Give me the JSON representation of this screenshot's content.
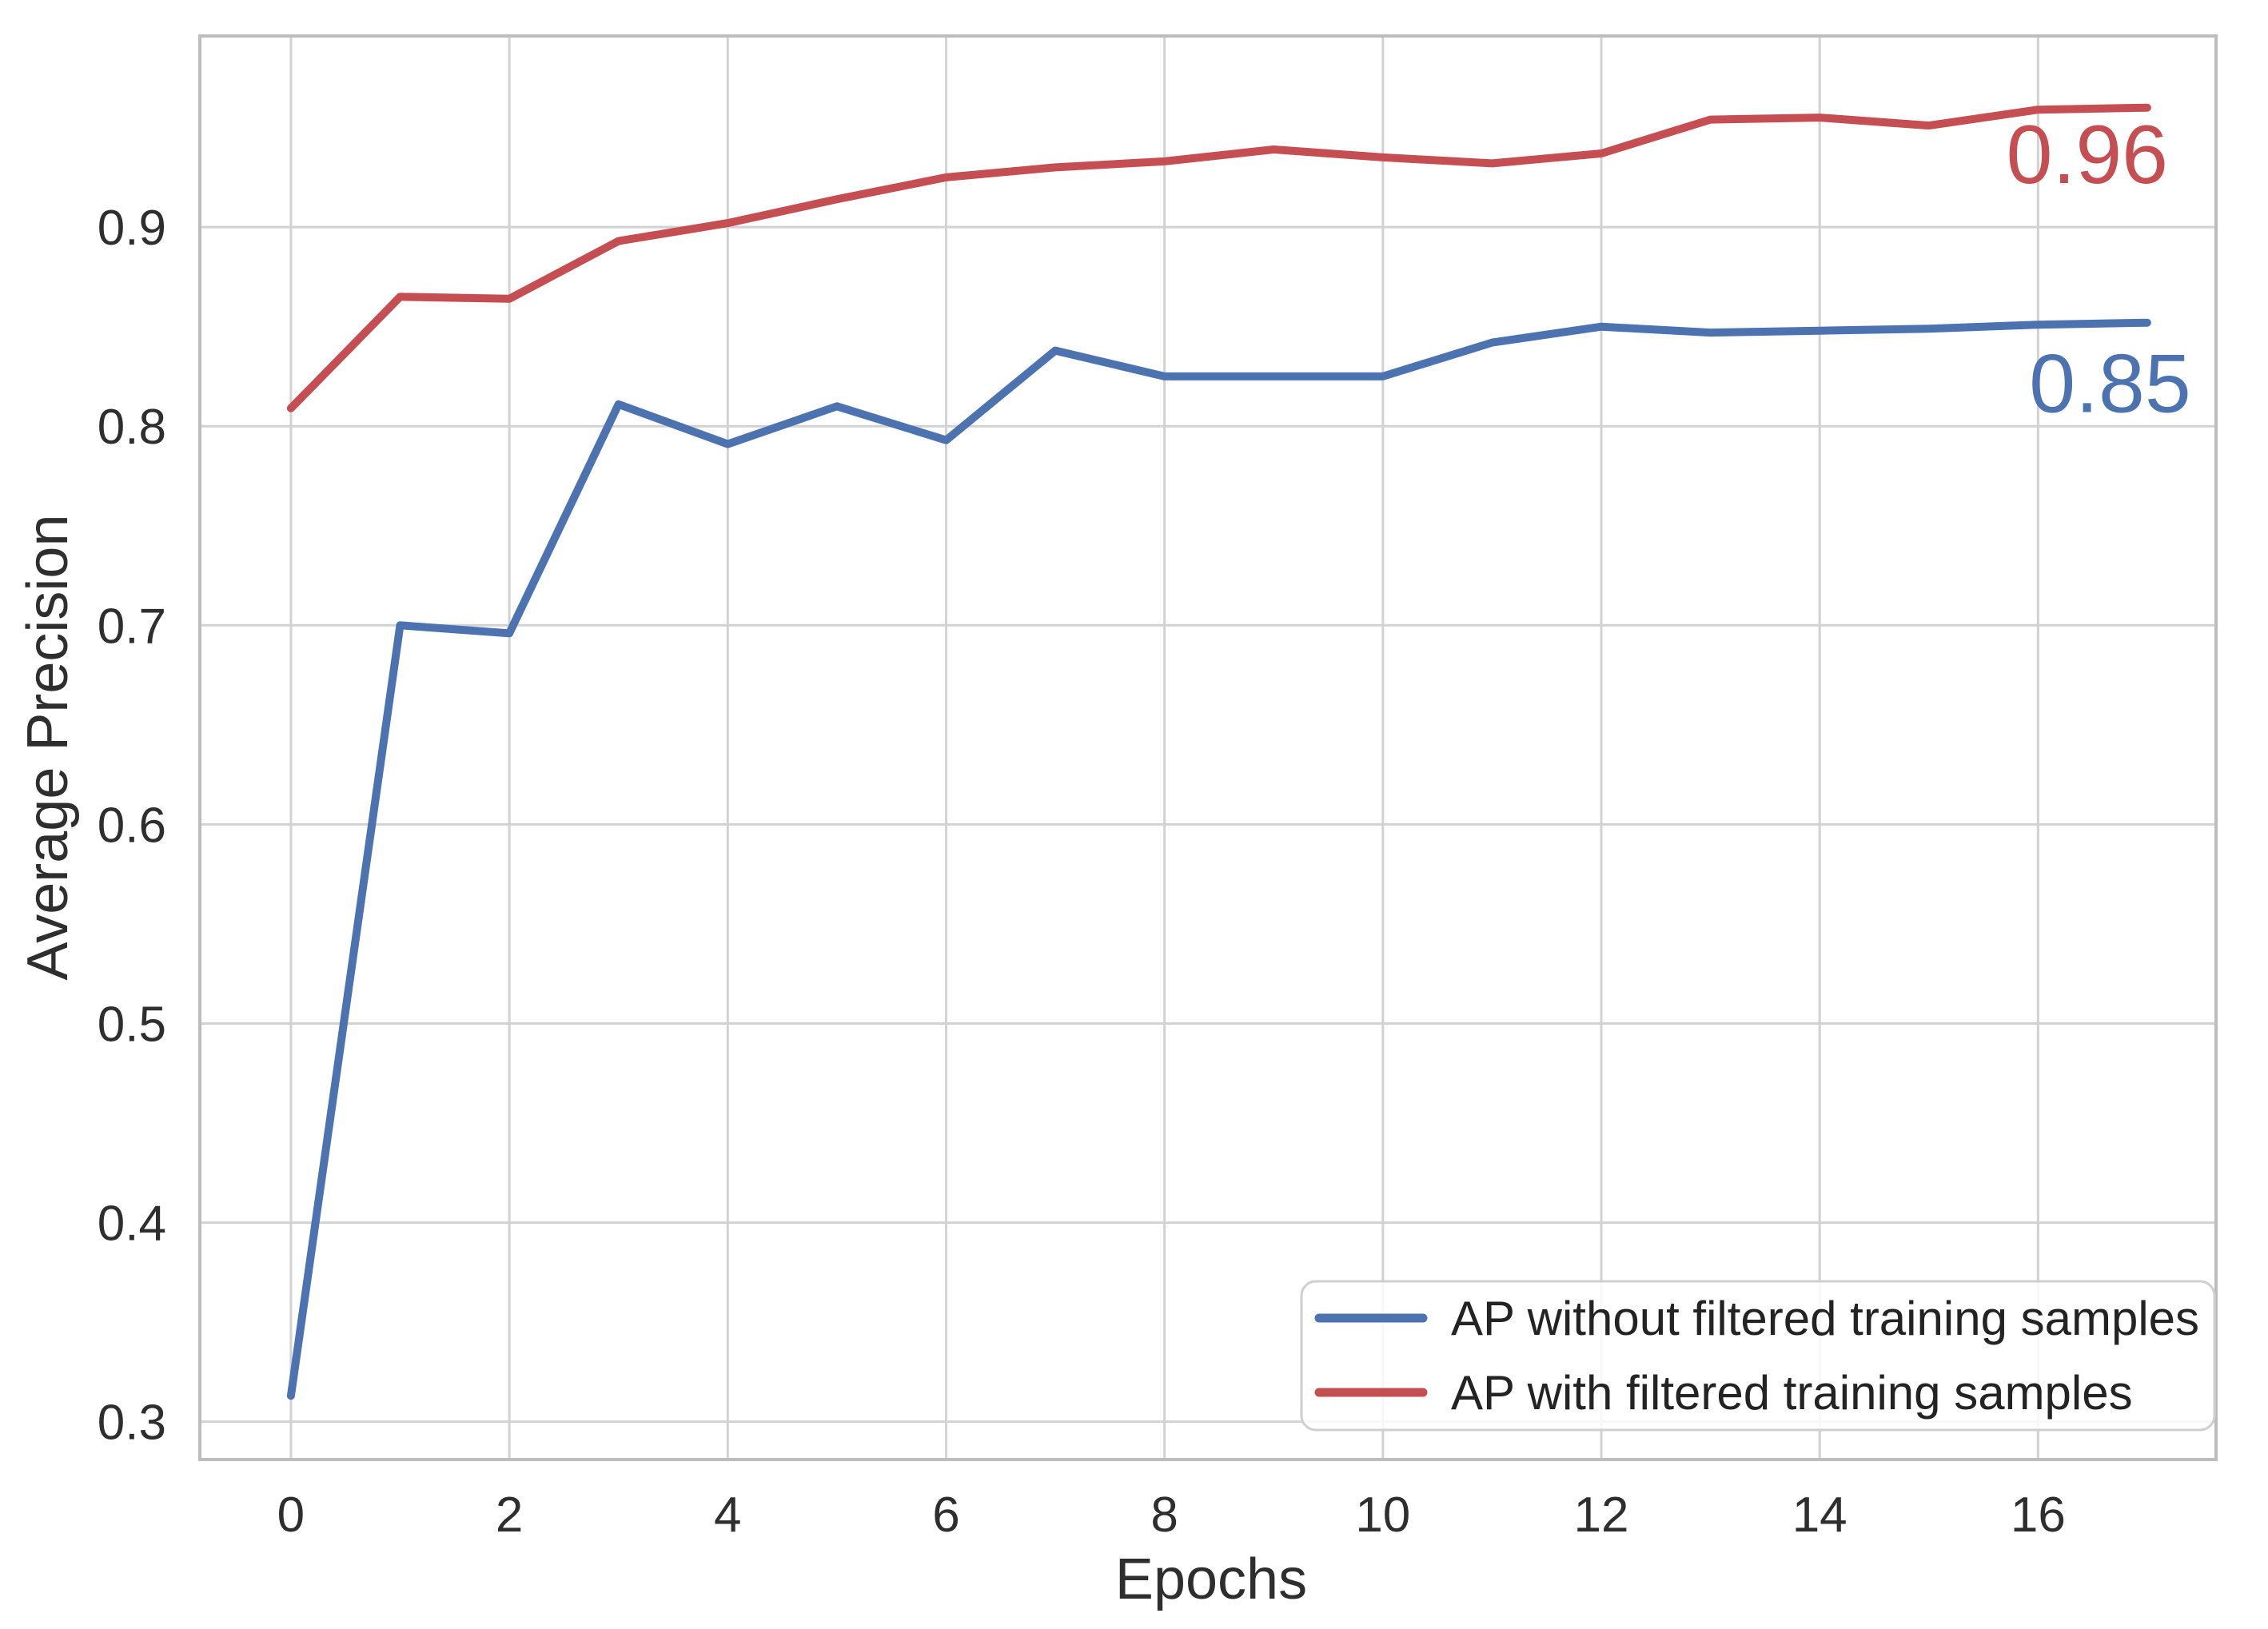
{
  "chart_data": {
    "type": "line",
    "title": "",
    "xlabel": "Epochs",
    "ylabel": "Average Precision",
    "x": [
      0,
      1,
      2,
      3,
      4,
      5,
      6,
      7,
      8,
      9,
      10,
      11,
      12,
      13,
      14,
      15,
      16,
      17
    ],
    "series": [
      {
        "name": "AP without filtered training samples",
        "color": "#4C72B0",
        "values": [
          0.313,
          0.7,
          0.696,
          0.811,
          0.791,
          0.81,
          0.793,
          0.838,
          0.825,
          0.825,
          0.825,
          0.842,
          0.85,
          0.847,
          0.848,
          0.849,
          0.851,
          0.852
        ]
      },
      {
        "name": "AP with filtered training samples",
        "color": "#C44E52",
        "values": [
          0.809,
          0.865,
          0.864,
          0.893,
          0.902,
          0.914,
          0.925,
          0.93,
          0.933,
          0.939,
          0.935,
          0.932,
          0.937,
          0.954,
          0.955,
          0.951,
          0.959,
          0.96
        ]
      }
    ],
    "x_ticks": [
      0,
      2,
      4,
      6,
      8,
      10,
      12,
      14,
      16
    ],
    "y_ticks": [
      0.3,
      0.4,
      0.5,
      0.6,
      0.7,
      0.8,
      0.9
    ],
    "xlim": [
      -0.834,
      17.63
    ],
    "ylim": [
      0.281,
      0.996
    ],
    "grid": true,
    "legend_position": "lower right",
    "annotations": [
      {
        "text": "0.96",
        "color": "#C44E52",
        "x": 16.45,
        "y": 0.937
      },
      {
        "text": "0.85",
        "color": "#4C72B0",
        "x": 16.66,
        "y": 0.822
      }
    ]
  },
  "colors": {
    "background": "#ffffff",
    "grid": "#d2d2d2",
    "spine": "#bdbdbd",
    "text": "#2e2e2e",
    "legend_border": "#cfcfcf",
    "legend_fill": "rgba(255,255,255,0.85)"
  },
  "legend": {
    "items": [
      {
        "label": "AP without filtered training samples",
        "color": "#4C72B0"
      },
      {
        "label": "AP with filtered training samples",
        "color": "#C44E52"
      }
    ]
  }
}
